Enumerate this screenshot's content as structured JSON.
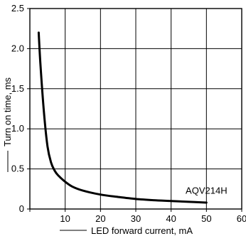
{
  "chart_data": {
    "type": "line",
    "title": "",
    "xlabel": "LED forward current, mA",
    "ylabel": "Turn on time, ms",
    "xlim": [
      0,
      60
    ],
    "ylim": [
      0,
      2.5
    ],
    "x_ticks": [
      0,
      10,
      20,
      30,
      40,
      50,
      60
    ],
    "x_tick_labels": [
      "",
      "10",
      "20",
      "30",
      "40",
      "50",
      "60"
    ],
    "y_ticks": [
      0,
      0.5,
      1.0,
      1.5,
      2.0,
      2.5
    ],
    "y_tick_labels": [
      "0",
      "0.5",
      "1.0",
      "1.5",
      "2.0",
      "2.5"
    ],
    "grid": true,
    "series": [
      {
        "x": [
          2.5,
          3,
          4,
          5,
          6,
          7,
          8,
          10,
          12,
          15,
          20,
          25,
          30,
          35,
          40,
          45,
          50
        ],
        "y": [
          2.2,
          1.8,
          1.2,
          0.78,
          0.58,
          0.48,
          0.42,
          0.34,
          0.28,
          0.23,
          0.18,
          0.15,
          0.125,
          0.11,
          0.1,
          0.09,
          0.08
        ]
      }
    ],
    "annotations": [
      {
        "text": "AQV214H",
        "x": 50,
        "y": 0.1
      }
    ],
    "line_color": "#000000"
  }
}
